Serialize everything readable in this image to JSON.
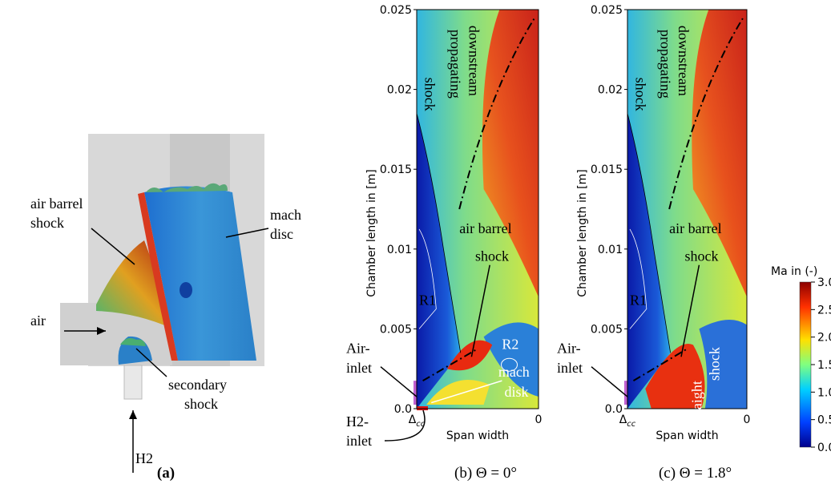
{
  "panel_a": {
    "caption": "(a)",
    "labels": {
      "air_barrel_shock": [
        "air barrel",
        "shock"
      ],
      "mach_disc": [
        "mach",
        "disc"
      ],
      "air": "air",
      "secondary_shock": [
        "secondary",
        "shock"
      ],
      "h2": "H2"
    }
  },
  "panel_b": {
    "caption": "(b) Θ = 0°",
    "y_axis_label": "Chamber length in [m]",
    "x_axis_label": "Span width",
    "yticks": [
      "0.0",
      "0.005",
      "0.01",
      "0.015",
      "0.02",
      "0.025"
    ],
    "xticks": [
      {
        "symbol": "Δ",
        "subscript": "cc"
      },
      "0"
    ],
    "annotations": {
      "shock": "shock",
      "propagating": [
        "propagating",
        "downstream"
      ],
      "air_barrel_shock": [
        "air barrel",
        "shock"
      ],
      "r1": "R1",
      "r2": "R2",
      "mach_disk": [
        "mach",
        "disk"
      ],
      "air_inlet": [
        "Air-",
        "inlet"
      ],
      "h2_inlet": [
        "H2-",
        "inlet"
      ]
    }
  },
  "panel_c": {
    "caption": "(c) Θ = 1.8°",
    "y_axis_label": "Chamber length in [m]",
    "x_axis_label": "Span width",
    "yticks": [
      "0.0",
      "0.005",
      "0.01",
      "0.015",
      "0.02",
      "0.025"
    ],
    "xticks": [
      {
        "symbol": "Δ",
        "subscript": "cc"
      },
      "0"
    ],
    "annotations": {
      "shock": "shock",
      "propagating": [
        "propagating",
        "downstream"
      ],
      "air_barrel_shock": [
        "air barrel",
        "shock"
      ],
      "r1": "R1",
      "straight_shock": [
        "straight",
        "shock"
      ],
      "air_inlet": [
        "Air-",
        "inlet"
      ]
    }
  },
  "colorbar": {
    "title": "Ma in (-)",
    "ticks": [
      "0.0",
      "0.5",
      "1.0",
      "1.5",
      "2.0",
      "2.5",
      "3.0"
    ]
  }
}
